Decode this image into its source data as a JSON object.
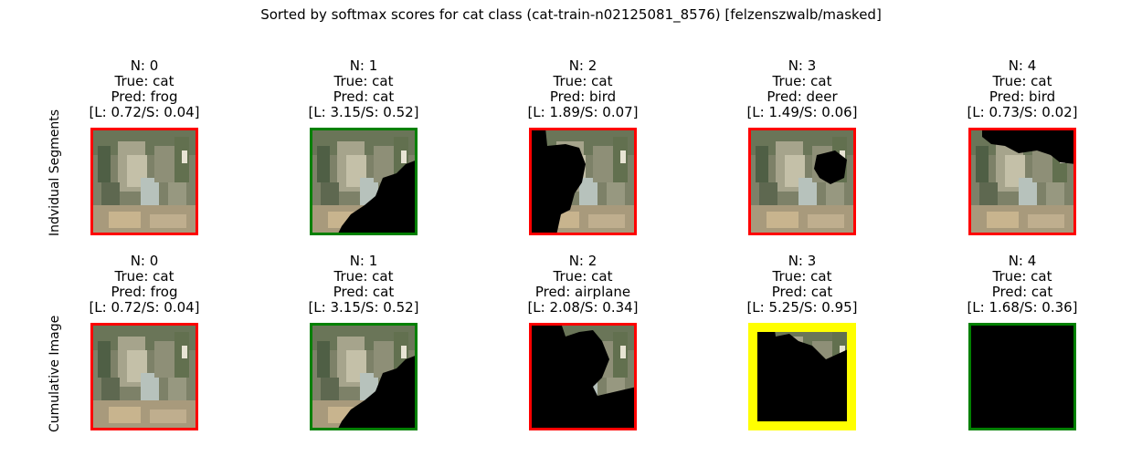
{
  "chart_data": {
    "type": "image-grid",
    "title": "Sorted by softmax scores for cat class (cat-train-n02125081_8576) [felzenszwalb/masked]",
    "rows": [
      {
        "label": "Indvidual Segments",
        "panels": [
          {
            "n": "N: 0",
            "true": "True: cat",
            "pred": "Pred: frog",
            "scores": "[L: 0.72/S: 0.04]",
            "border": "red",
            "mask": "none"
          },
          {
            "n": "N: 1",
            "true": "True: cat",
            "pred": "Pred: cat",
            "scores": "[L: 3.15/S: 0.52]",
            "border": "green",
            "mask": "lower-right"
          },
          {
            "n": "N: 2",
            "true": "True: cat",
            "pred": "Pred: bird",
            "scores": "[L: 1.89/S: 0.07]",
            "border": "red",
            "mask": "left-large"
          },
          {
            "n": "N: 3",
            "true": "True: cat",
            "pred": "Pred: deer",
            "scores": "[L: 1.49/S: 0.06]",
            "border": "red",
            "mask": "small-center"
          },
          {
            "n": "N: 4",
            "true": "True: cat",
            "pred": "Pred: bird",
            "scores": "[L: 0.73/S: 0.02]",
            "border": "red",
            "mask": "top-band"
          }
        ]
      },
      {
        "label": "Cumulative Image",
        "panels": [
          {
            "n": "N: 0",
            "true": "True: cat",
            "pred": "Pred: frog",
            "scores": "[L: 0.72/S: 0.04]",
            "border": "red",
            "mask": "none"
          },
          {
            "n": "N: 1",
            "true": "True: cat",
            "pred": "Pred: cat",
            "scores": "[L: 3.15/S: 0.52]",
            "border": "green",
            "mask": "lower-right"
          },
          {
            "n": "N: 2",
            "true": "True: cat",
            "pred": "Pred: airplane",
            "scores": "[L: 2.08/S: 0.34]",
            "border": "red",
            "mask": "cumulative-2"
          },
          {
            "n": "N: 3",
            "true": "True: cat",
            "pred": "Pred: cat",
            "scores": "[L: 5.25/S: 0.95]",
            "border": "yellow",
            "mask": "cumulative-3"
          },
          {
            "n": "N: 4",
            "true": "True: cat",
            "pred": "Pred: cat",
            "scores": "[L: 1.68/S: 0.36]",
            "border": "green",
            "mask": "full"
          }
        ]
      }
    ],
    "border_colors": {
      "red": "#ff0000",
      "green": "#008000",
      "yellow": "#ffff00"
    }
  }
}
